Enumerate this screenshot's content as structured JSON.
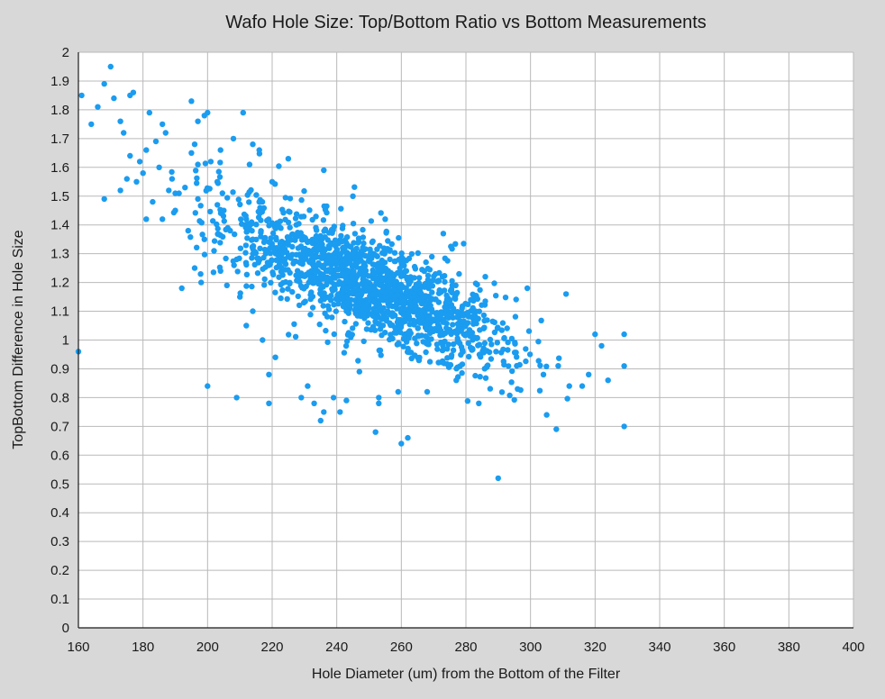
{
  "chart_data": {
    "type": "scatter",
    "title": "Wafo Hole Size: Top/Bottom Ratio vs Bottom Measurements",
    "xlabel": "Hole Diameter (um) from the Bottom of the Filter",
    "ylabel": "TopBottom Difference in Hole Size",
    "xlim": [
      160,
      400
    ],
    "ylim": [
      0,
      2
    ],
    "x_ticks": [
      "160",
      "180",
      "200",
      "220",
      "240",
      "260",
      "280",
      "300",
      "320",
      "340",
      "360",
      "380",
      "400"
    ],
    "y_ticks": [
      "0",
      "0.1",
      "0.2",
      "0.3",
      "0.4",
      "0.5",
      "0.6",
      "0.7",
      "0.8",
      "0.9",
      "1",
      "1.1",
      "1.2",
      "1.3",
      "1.4",
      "1.5",
      "1.6",
      "1.7",
      "1.8",
      "1.9",
      "2"
    ],
    "grid": true,
    "legend": "none",
    "point_color": "#1a9cf0",
    "series": [
      {
        "points": [
          [
            160,
            0.96
          ],
          [
            161,
            1.85
          ],
          [
            164,
            1.75
          ],
          [
            166,
            1.81
          ],
          [
            168,
            1.89
          ],
          [
            170,
            1.95
          ],
          [
            171,
            1.84
          ],
          [
            173,
            1.76
          ],
          [
            174,
            1.72
          ],
          [
            176,
            1.85
          ],
          [
            177,
            1.86
          ],
          [
            168,
            1.49
          ],
          [
            173,
            1.52
          ],
          [
            175,
            1.56
          ],
          [
            178,
            1.55
          ],
          [
            180,
            1.58
          ],
          [
            182,
            1.79
          ],
          [
            184,
            1.69
          ],
          [
            186,
            1.75
          ],
          [
            187,
            1.72
          ],
          [
            181,
            1.42
          ],
          [
            186,
            1.42
          ],
          [
            189,
            1.56
          ],
          [
            190,
            1.51
          ],
          [
            193,
            1.53
          ],
          [
            195,
            1.83
          ],
          [
            197,
            1.76
          ],
          [
            199,
            1.78
          ],
          [
            200,
            1.79
          ],
          [
            196,
            1.68
          ],
          [
            200,
            0.84
          ],
          [
            209,
            0.8
          ],
          [
            211,
            1.79
          ],
          [
            214,
            1.68
          ],
          [
            216,
            1.66
          ],
          [
            219,
            0.78
          ],
          [
            229,
            0.8
          ],
          [
            233,
            0.78
          ],
          [
            235,
            0.72
          ],
          [
            236,
            0.75
          ],
          [
            241,
            0.75
          ],
          [
            243,
            0.79
          ],
          [
            252,
            0.68
          ],
          [
            253,
            0.8
          ],
          [
            253,
            0.78
          ],
          [
            260,
            0.64
          ],
          [
            262,
            0.66
          ],
          [
            290,
            0.52
          ],
          [
            305,
            0.74
          ],
          [
            308,
            0.69
          ],
          [
            329,
            0.7
          ],
          [
            329,
            0.91
          ],
          [
            329,
            1.02
          ],
          [
            324,
            0.86
          ],
          [
            322,
            0.98
          ],
          [
            320,
            1.02
          ],
          [
            311,
            1.16
          ],
          [
            299,
            1.18
          ],
          [
            286,
            1.22
          ],
          [
            273,
            1.37
          ],
          [
            255,
            1.42
          ],
          [
            245,
            1.5
          ],
          [
            236,
            1.59
          ],
          [
            225,
            1.63
          ],
          [
            219,
            0.88
          ],
          [
            221,
            0.94
          ],
          [
            231,
            0.84
          ],
          [
            239,
            0.8
          ],
          [
            247,
            0.89
          ],
          [
            259,
            0.82
          ],
          [
            268,
            0.82
          ],
          [
            277,
            0.86
          ],
          [
            284,
            0.78
          ],
          [
            296,
            0.83
          ],
          [
            304,
            0.88
          ],
          [
            312,
            0.84
          ],
          [
            316,
            0.84
          ],
          [
            318,
            0.88
          ],
          [
            201,
            1.62
          ],
          [
            203,
            1.55
          ],
          [
            205,
            1.45
          ],
          [
            207,
            1.38
          ],
          [
            209,
            1.28
          ],
          [
            212,
            1.42
          ],
          [
            214,
            1.35
          ],
          [
            216,
            1.48
          ],
          [
            218,
            1.3
          ],
          [
            220,
            1.55
          ],
          [
            192,
            1.18
          ],
          [
            196,
            1.25
          ],
          [
            198,
            1.2
          ],
          [
            202,
            1.31
          ],
          [
            204,
            1.24
          ],
          [
            206,
            1.19
          ],
          [
            210,
            1.15
          ],
          [
            212,
            1.05
          ],
          [
            214,
            1.1
          ],
          [
            217,
            1.0
          ],
          [
            190,
            1.45
          ],
          [
            194,
            1.38
          ],
          [
            197,
            1.49
          ],
          [
            199,
            1.35
          ],
          [
            185,
            1.6
          ],
          [
            188,
            1.52
          ],
          [
            183,
            1.48
          ],
          [
            179,
            1.62
          ],
          [
            176,
            1.64
          ],
          [
            181,
            1.66
          ],
          [
            195,
            1.65
          ],
          [
            197,
            1.61
          ],
          [
            204,
            1.66
          ],
          [
            208,
            1.7
          ],
          [
            213,
            1.61
          ]
        ]
      }
    ]
  }
}
